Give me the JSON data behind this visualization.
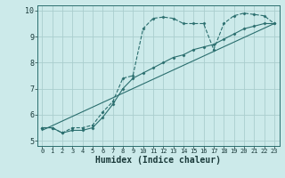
{
  "xlabel": "Humidex (Indice chaleur)",
  "bg_color": "#cceaea",
  "grid_color": "#aacece",
  "line_color": "#2a6e6e",
  "xlim": [
    -0.5,
    23.5
  ],
  "ylim": [
    4.8,
    10.2
  ],
  "xticks": [
    0,
    1,
    2,
    3,
    4,
    5,
    6,
    7,
    8,
    9,
    10,
    11,
    12,
    13,
    14,
    15,
    16,
    17,
    18,
    19,
    20,
    21,
    22,
    23
  ],
  "yticks": [
    5,
    6,
    7,
    8,
    9,
    10
  ],
  "series1_x": [
    0,
    1,
    2,
    3,
    4,
    5,
    6,
    7,
    8,
    9,
    10,
    11,
    12,
    13,
    14,
    15,
    16,
    17,
    18,
    19,
    20,
    21,
    22,
    23
  ],
  "series1_y": [
    5.5,
    5.5,
    5.3,
    5.5,
    5.5,
    5.6,
    6.1,
    6.5,
    7.4,
    7.5,
    9.3,
    9.7,
    9.75,
    9.7,
    9.5,
    9.5,
    9.5,
    8.5,
    9.5,
    9.8,
    9.9,
    9.85,
    9.8,
    9.5
  ],
  "series2_x": [
    0,
    23
  ],
  "series2_y": [
    5.4,
    9.5
  ],
  "series3_x": [
    0,
    1,
    2,
    3,
    4,
    5,
    6,
    7,
    8,
    9,
    10,
    11,
    12,
    13,
    14,
    15,
    16,
    17,
    18,
    19,
    20,
    21,
    22,
    23
  ],
  "series3_y": [
    5.5,
    5.5,
    5.3,
    5.4,
    5.4,
    5.5,
    5.9,
    6.4,
    7.0,
    7.4,
    7.6,
    7.8,
    8.0,
    8.2,
    8.3,
    8.5,
    8.6,
    8.7,
    8.9,
    9.1,
    9.3,
    9.4,
    9.5,
    9.5
  ],
  "lw": 0.8,
  "ms": 3.5,
  "xlabel_fontsize": 7,
  "tick_fontsize": 5,
  "ylabel_fontsize": 6
}
